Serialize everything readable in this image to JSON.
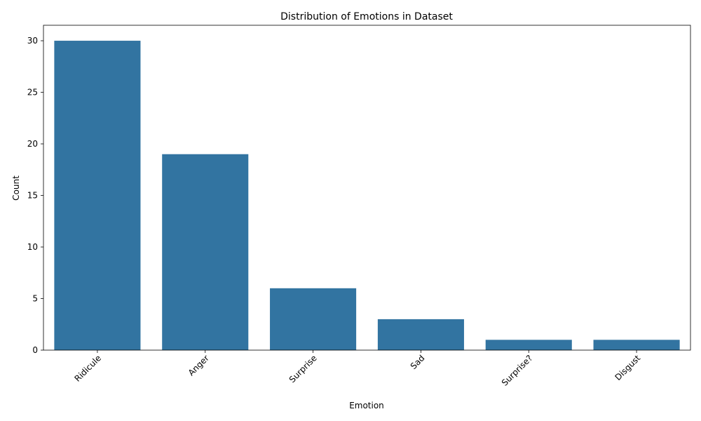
{
  "chart_data": {
    "type": "bar",
    "title": "Distribution of Emotions in Dataset",
    "xlabel": "Emotion",
    "ylabel": "Count",
    "categories": [
      "Ridicule",
      "Anger",
      "Surprise",
      "Sad",
      "Surprise?",
      "Disgust"
    ],
    "values": [
      30,
      19,
      6,
      3,
      1,
      1
    ],
    "ylim": [
      0,
      31.5
    ],
    "yticks": [
      "0",
      "5",
      "10",
      "15",
      "20",
      "25",
      "30"
    ],
    "xtick_rotation": "45 degrees",
    "grid": false,
    "bar_color": "#3274a1"
  }
}
